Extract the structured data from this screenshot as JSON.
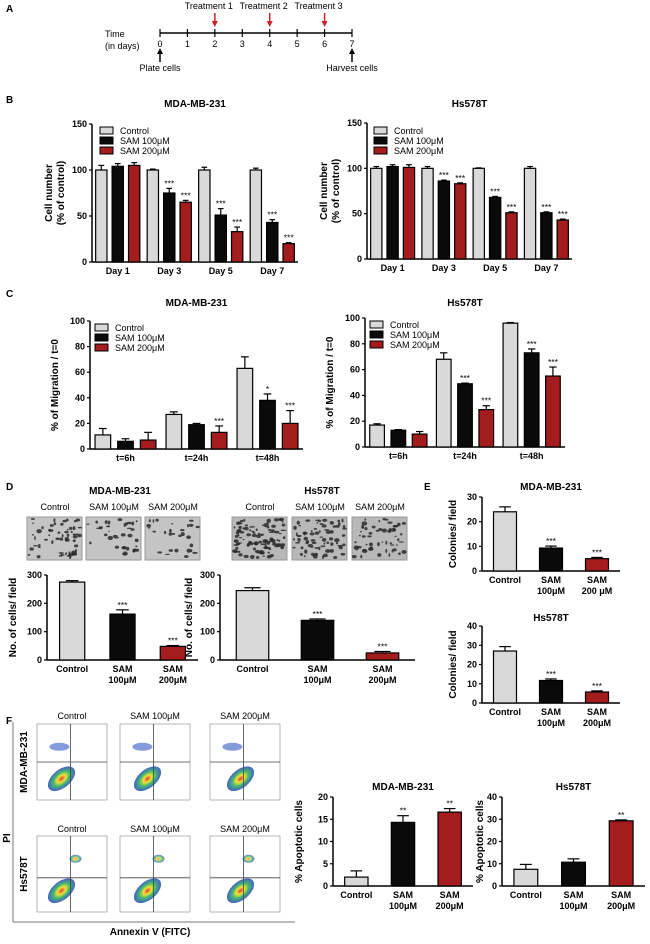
{
  "colors": {
    "control": "#d9d9d9",
    "sam100": "#0a0a0a",
    "sam200": "#a31c1e",
    "arrow_red": "#d0202a"
  },
  "panel_labels": [
    "A",
    "B",
    "C",
    "D",
    "E",
    "F"
  ],
  "timeline": {
    "time_label": [
      "Time",
      "(in days)"
    ],
    "days": [
      0,
      1,
      2,
      3,
      4,
      5,
      6,
      7
    ],
    "treatments": [
      {
        "label": "Treatment 1",
        "day": 2
      },
      {
        "label": "Treatment 2",
        "day": 4
      },
      {
        "label": "Treatment 3",
        "day": 6
      }
    ],
    "start_label": "Plate cells",
    "end_label": "Harvest cells"
  },
  "legend_labels": [
    "Control",
    "SAM 100μM",
    "SAM 200μM"
  ],
  "image_labels": [
    "Control",
    "SAM 100μM",
    "SAM 200μM"
  ],
  "panel_d_titles": [
    "MDA-MB-231",
    "Hs578T"
  ],
  "flow": {
    "column_labels": [
      "Control",
      "SAM 100μM",
      "SAM 200μM"
    ],
    "row_labels": [
      "MDA-MB-231",
      "Hs578T"
    ],
    "x_label": "Annexin V (FITC)",
    "y_label": "PI"
  },
  "chart_data": [
    {
      "id": "B1",
      "type": "bar",
      "title": "MDA-MB-231",
      "ylabel": [
        "Cell number",
        "(% of control)"
      ],
      "xlabel": "",
      "categories": [
        "Day 1",
        "Day 3",
        "Day 5",
        "Day 7"
      ],
      "ylim": [
        0,
        150
      ],
      "yticks": [
        0,
        50,
        100,
        150
      ],
      "legend": "top-left",
      "series": [
        {
          "name": "Control",
          "values": [
            100,
            100,
            100,
            100
          ],
          "errors": [
            5,
            1,
            3,
            2
          ],
          "sig": [
            "",
            "",
            "",
            ""
          ]
        },
        {
          "name": "SAM 100μM",
          "values": [
            104,
            75,
            51,
            43
          ],
          "errors": [
            3,
            5,
            7,
            3
          ],
          "sig": [
            "",
            "***",
            "***",
            "***"
          ]
        },
        {
          "name": "SAM 200μM",
          "values": [
            105,
            65,
            33,
            20
          ],
          "errors": [
            3,
            2,
            5,
            1
          ],
          "sig": [
            "",
            "***",
            "***",
            "***"
          ]
        }
      ]
    },
    {
      "id": "B2",
      "type": "bar",
      "title": "Hs578T",
      "ylabel": [
        "Cell number",
        "(% of control)"
      ],
      "xlabel": "",
      "categories": [
        "Day 1",
        "Day 3",
        "Day 5",
        "Day 7"
      ],
      "ylim": [
        0,
        150
      ],
      "yticks": [
        0,
        50,
        100,
        150
      ],
      "legend": "top-left",
      "series": [
        {
          "name": "Control",
          "values": [
            100,
            100,
            100,
            100
          ],
          "errors": [
            2,
            2,
            0.5,
            2
          ],
          "sig": [
            "",
            "",
            "",
            ""
          ]
        },
        {
          "name": "SAM 100μM",
          "values": [
            102,
            86,
            68,
            51
          ],
          "errors": [
            2,
            1,
            1,
            1
          ],
          "sig": [
            "",
            "***",
            "***",
            "***"
          ]
        },
        {
          "name": "SAM 200μM",
          "values": [
            101,
            83,
            51,
            43
          ],
          "errors": [
            3,
            1,
            1,
            1
          ],
          "sig": [
            "",
            "***",
            "***",
            "***"
          ]
        }
      ]
    },
    {
      "id": "C1",
      "type": "bar",
      "title": "MDA-MB-231",
      "ylabel": [
        "% of Migration / t=0"
      ],
      "xlabel": "",
      "categories": [
        "t=6h",
        "t=24h",
        "t=48h"
      ],
      "ylim": [
        0,
        100
      ],
      "yticks": [
        0,
        20,
        40,
        60,
        80,
        100
      ],
      "legend": "top-left",
      "series": [
        {
          "name": "Control",
          "values": [
            11,
            27,
            63
          ],
          "errors": [
            5,
            2,
            9
          ],
          "sig": [
            "",
            "",
            ""
          ]
        },
        {
          "name": "SAM 100μM",
          "values": [
            6,
            19,
            38
          ],
          "errors": [
            2,
            1,
            5
          ],
          "sig": [
            "",
            "",
            "*"
          ]
        },
        {
          "name": "SAM 200μM",
          "values": [
            7,
            13,
            20
          ],
          "errors": [
            6,
            5,
            10
          ],
          "sig": [
            "",
            "***",
            "***"
          ]
        }
      ]
    },
    {
      "id": "C2",
      "type": "bar",
      "title": "Hs578T",
      "ylabel": [
        "% of Migration / t=0"
      ],
      "xlabel": "",
      "categories": [
        "t=6h",
        "t=24h",
        "t=48h"
      ],
      "ylim": [
        0,
        100
      ],
      "yticks": [
        0,
        20,
        40,
        60,
        80,
        100
      ],
      "legend": "top-left",
      "series": [
        {
          "name": "Control",
          "values": [
            17,
            68,
            96
          ],
          "errors": [
            1,
            5,
            0.5
          ],
          "sig": [
            "",
            "",
            ""
          ]
        },
        {
          "name": "SAM 100μM",
          "values": [
            13,
            49,
            73
          ],
          "errors": [
            0.5,
            0.5,
            3
          ],
          "sig": [
            "",
            "***",
            "***"
          ]
        },
        {
          "name": "SAM 200μM",
          "values": [
            10,
            29,
            55
          ],
          "errors": [
            2,
            3,
            7
          ],
          "sig": [
            "",
            "***",
            "***"
          ]
        }
      ]
    },
    {
      "id": "D1",
      "type": "bar",
      "title": "",
      "ylabel": [
        "No. of cells/ field"
      ],
      "xlabel": "",
      "categories": [
        "Control",
        "SAM\n100μM",
        "SAM\n200μM"
      ],
      "ylim": [
        0,
        300
      ],
      "yticks": [
        0,
        100,
        200,
        300
      ],
      "values": [
        275,
        162,
        48
      ],
      "errors": [
        5,
        15,
        3
      ],
      "sig": [
        "",
        "***",
        "***"
      ]
    },
    {
      "id": "D2",
      "type": "bar",
      "title": "",
      "ylabel": [
        "No. of cells/ field"
      ],
      "xlabel": "",
      "categories": [
        "Control",
        "SAM\n100μM",
        "SAM\n200μM"
      ],
      "ylim": [
        0,
        300
      ],
      "yticks": [
        0,
        100,
        200,
        300
      ],
      "values": [
        245,
        140,
        25
      ],
      "errors": [
        10,
        5,
        5
      ],
      "sig": [
        "",
        "***",
        "***"
      ]
    },
    {
      "id": "E1",
      "type": "bar",
      "title": "MDA-MB-231",
      "ylabel": [
        "Colonies/ field"
      ],
      "xlabel": "",
      "categories": [
        "Control",
        "SAM\n100μM",
        "SAM\n200 μM"
      ],
      "ylim": [
        0,
        30
      ],
      "yticks": [
        0,
        10,
        20,
        30
      ],
      "values": [
        24,
        9.3,
        5
      ],
      "errors": [
        2,
        0.8,
        0.5
      ],
      "sig": [
        "",
        "***",
        "***"
      ]
    },
    {
      "id": "E2",
      "type": "bar",
      "title": "Hs578T",
      "ylabel": [
        "Colonies/ field"
      ],
      "xlabel": "",
      "categories": [
        "Control",
        "SAM\n100μM",
        "SAM\n200μM"
      ],
      "ylim": [
        0,
        40
      ],
      "yticks": [
        0,
        10,
        20,
        30,
        40
      ],
      "values": [
        27,
        11.7,
        5.7
      ],
      "errors": [
        2.3,
        0.8,
        0.6
      ],
      "sig": [
        "",
        "***",
        "***"
      ]
    },
    {
      "id": "F1",
      "type": "bar",
      "title": "MDA-MB-231",
      "ylabel": [
        "% Apoptotic cells"
      ],
      "xlabel": "",
      "categories": [
        "Control",
        "SAM\n100μM",
        "SAM\n200μM"
      ],
      "ylim": [
        0,
        20
      ],
      "yticks": [
        0,
        5,
        10,
        15,
        20
      ],
      "values": [
        2,
        14.3,
        16.6
      ],
      "errors": [
        1.4,
        1.5,
        0.8
      ],
      "sig": [
        "",
        "**",
        "**"
      ]
    },
    {
      "id": "F2",
      "type": "bar",
      "title": "Hs578T",
      "ylabel": [
        "% Apoptotic cells"
      ],
      "xlabel": "",
      "categories": [
        "Control",
        "SAM\n100μM",
        "SAM\n200μM"
      ],
      "ylim": [
        0,
        40
      ],
      "yticks": [
        0,
        10,
        20,
        30,
        40
      ],
      "values": [
        7.5,
        10.7,
        29.3
      ],
      "errors": [
        2.2,
        1.5,
        0.4
      ],
      "sig": [
        "",
        "",
        "**"
      ]
    }
  ]
}
